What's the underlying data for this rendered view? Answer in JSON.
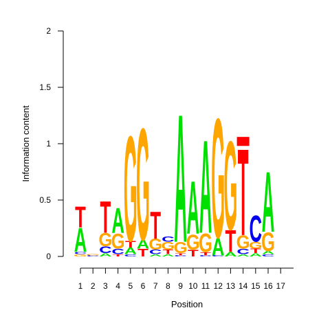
{
  "chart_data": {
    "type": "sequence-logo",
    "xlabel": "Position",
    "ylabel": "Information content",
    "ylim": [
      0,
      2
    ],
    "y_ticks": [
      "0",
      "0.5",
      "1",
      "1.5",
      "2"
    ],
    "x_ticks": [
      "1",
      "2",
      "3",
      "4",
      "5",
      "6",
      "7",
      "8",
      "9",
      "10",
      "11",
      "12",
      "13",
      "14",
      "15",
      "16",
      "17"
    ],
    "colors": {
      "A": "#00e000",
      "C": "#0000ee",
      "G": "#ffa500",
      "T": "#ff0000",
      "gap": "#ff0000"
    },
    "positions": [
      {
        "pos": 1,
        "letters": [
          [
            "G",
            0.02
          ],
          [
            "C",
            0.02
          ],
          [
            "A",
            0.22
          ],
          [
            "T",
            0.19
          ]
        ]
      },
      {
        "pos": 2,
        "letters": [
          [
            "C",
            0.01
          ],
          [
            "G",
            0.01
          ]
        ]
      },
      {
        "pos": 3,
        "letters": [
          [
            "A",
            0.03
          ],
          [
            "C",
            0.06
          ],
          [
            "G",
            0.12
          ],
          [
            "T",
            0.29
          ]
        ]
      },
      {
        "pos": 4,
        "letters": [
          [
            "T",
            0.02
          ],
          [
            "C",
            0.05
          ],
          [
            "G",
            0.14
          ],
          [
            "A",
            0.23
          ]
        ]
      },
      {
        "pos": 5,
        "letters": [
          [
            "C",
            0.02
          ],
          [
            "A",
            0.06
          ],
          [
            "T",
            0.06
          ],
          [
            "G",
            0.96
          ]
        ]
      },
      {
        "pos": 6,
        "letters": [
          [
            "T",
            0.07
          ],
          [
            "A",
            0.08
          ],
          [
            "G",
            1.02
          ]
        ]
      },
      {
        "pos": 7,
        "letters": [
          [
            "A",
            0.02
          ],
          [
            "C",
            0.04
          ],
          [
            "G",
            0.1
          ],
          [
            "T",
            0.25
          ]
        ]
      },
      {
        "pos": 8,
        "letters": [
          [
            "A",
            0.02
          ],
          [
            "T",
            0.04
          ],
          [
            "G",
            0.07
          ],
          [
            "C",
            0.05
          ]
        ]
      },
      {
        "pos": 9,
        "letters": [
          [
            "C",
            0.01
          ],
          [
            "T",
            0.02
          ],
          [
            "G",
            0.1
          ],
          [
            "A",
            1.17
          ]
        ]
      },
      {
        "pos": 10,
        "letters": [
          [
            "T",
            0.06
          ],
          [
            "G",
            0.14
          ],
          [
            "A",
            0.48
          ]
        ]
      },
      {
        "pos": 11,
        "letters": [
          [
            "C",
            0.01
          ],
          [
            "T",
            0.03
          ],
          [
            "G",
            0.17
          ],
          [
            "A",
            0.85
          ]
        ]
      },
      {
        "pos": 12,
        "letters": [
          [
            "C",
            0.01
          ],
          [
            "A",
            0.16
          ],
          [
            "G",
            1.09
          ]
        ]
      },
      {
        "pos": 13,
        "letters": [
          [
            "A",
            0.04
          ],
          [
            "T",
            0.2
          ],
          [
            "G",
            0.81
          ]
        ]
      },
      {
        "pos": 14,
        "letters": [
          [
            "A",
            0.02
          ],
          [
            "C",
            0.05
          ],
          [
            "G",
            0.12
          ],
          [
            "T",
            0.79
          ],
          [
            "gap",
            0.08
          ]
        ]
      },
      {
        "pos": 15,
        "letters": [
          [
            "A",
            0.03
          ],
          [
            "T",
            0.04
          ],
          [
            "G",
            0.06
          ],
          [
            "C",
            0.24
          ]
        ]
      },
      {
        "pos": 16,
        "letters": [
          [
            "C",
            0.02
          ],
          [
            "A",
            0.03
          ],
          [
            "G",
            0.17
          ],
          [
            "A",
            0.55
          ]
        ]
      }
    ]
  }
}
